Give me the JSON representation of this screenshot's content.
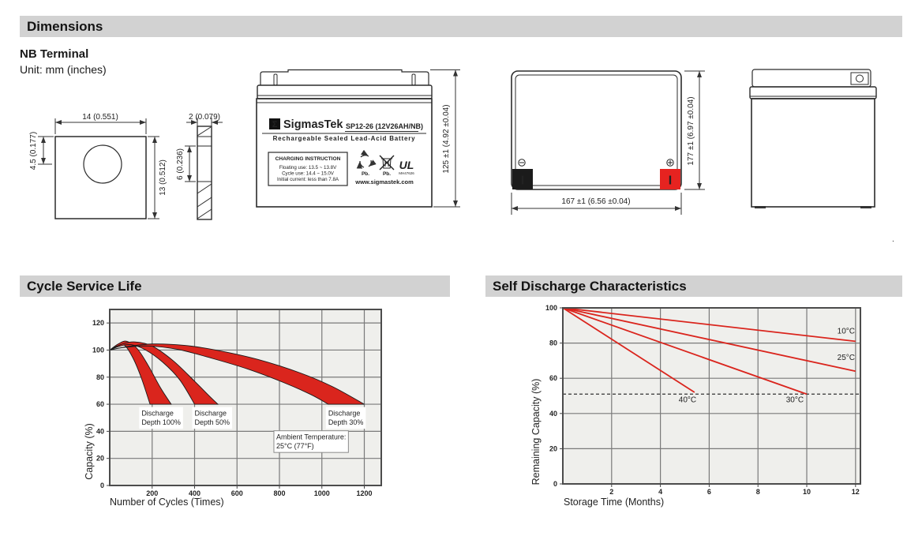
{
  "header": {
    "title": "Dimensions"
  },
  "colors": {
    "header_bar": "#d2d2d2",
    "accent_red": "#da251d",
    "chart_bg": "#efefec",
    "grid": "#7a7a7a",
    "border": "#4c4c4c",
    "terminal_black": "#1b1b1b",
    "terminal_red": "#e62320"
  },
  "dimensions": {
    "terminal_type": "NB Terminal",
    "unit_note": "Unit: mm (inches)",
    "terminal_front": {
      "width": "14 (0.551)",
      "height": "13 (0.512)",
      "hole_center_offset": "4.5 (0.177)"
    },
    "terminal_side": {
      "thickness": "2 (0.079)",
      "hole_height": "6 (0.236)"
    },
    "front_view": {
      "logo_glyph": "Σ",
      "brand": "SigmasTek",
      "model": "SP12-26 (12V26AH/NB)",
      "battery_type": "Rechargeable Sealed Lead-Acid Battery",
      "charging_title": "CHARGING INSTRUCTION",
      "charging_line1": "Floating use: 13.5 ~ 13.8V",
      "charging_line2": "Cycle use: 14.4 ~ 15.0V",
      "charging_line3": "Initial current: less than 7.8A",
      "pb_recycle": "Pb.",
      "pb_bin": "Pb.",
      "ul_mark": "UL",
      "ul_file": "MH47626",
      "website": "www.sigmastek.com",
      "height": "125 ±1 (4.92 ±0.04)"
    },
    "top_view": {
      "width": "167 ±1 (6.56 ±0.04)",
      "depth": "177 ±1 (6.97 ±0.04)",
      "terminal_slot": "I"
    },
    "trailing_dot": "."
  },
  "sections": {
    "cycle_title": "Cycle Service Life",
    "self_title": "Self Discharge Characteristics"
  },
  "chart_data": [
    {
      "id": "cycle-service-life",
      "type": "area",
      "title": "Cycle Service Life",
      "xlabel": "Number of Cycles (Times)",
      "ylabel": "Capacity (%)",
      "xlim": [
        0,
        1280
      ],
      "ylim": [
        0,
        130
      ],
      "xticks": [
        200,
        400,
        600,
        800,
        1000,
        1200
      ],
      "yticks": [
        0,
        20,
        40,
        60,
        80,
        100,
        120
      ],
      "grid": true,
      "legend_position": "none",
      "series_color": "#da251d",
      "bands": [
        {
          "name": "Discharge Depth 100%",
          "upper": [
            [
              0,
              100
            ],
            [
              40,
              104.5
            ],
            [
              80,
              106.5
            ],
            [
              130,
              101
            ],
            [
              180,
              89
            ],
            [
              240,
              72
            ],
            [
              290,
              60
            ]
          ],
          "lower": [
            [
              0,
              100
            ],
            [
              35,
              103
            ],
            [
              70,
              103.5
            ],
            [
              110,
              94
            ],
            [
              150,
              79
            ],
            [
              190,
              60
            ]
          ]
        },
        {
          "name": "Discharge Depth 50%",
          "upper": [
            [
              0,
              100
            ],
            [
              60,
              104.5
            ],
            [
              120,
              106
            ],
            [
              200,
              103
            ],
            [
              300,
              92
            ],
            [
              400,
              77
            ],
            [
              470,
              66
            ],
            [
              510,
              60
            ]
          ],
          "lower": [
            [
              0,
              100
            ],
            [
              50,
              103
            ],
            [
              100,
              104
            ],
            [
              170,
              100
            ],
            [
              250,
              91
            ],
            [
              330,
              78
            ],
            [
              400,
              60
            ]
          ]
        },
        {
          "name": "Discharge Depth 30%",
          "upper": [
            [
              0,
              100
            ],
            [
              80,
              102.5
            ],
            [
              200,
              104.5
            ],
            [
              350,
              103.5
            ],
            [
              500,
              100
            ],
            [
              700,
              93
            ],
            [
              900,
              83
            ],
            [
              1050,
              73
            ],
            [
              1200,
              60
            ]
          ],
          "lower": [
            [
              0,
              100
            ],
            [
              70,
              102
            ],
            [
              180,
              103
            ],
            [
              320,
              100.5
            ],
            [
              480,
              94
            ],
            [
              650,
              86
            ],
            [
              820,
              76
            ],
            [
              950,
              67
            ],
            [
              1030,
              60
            ]
          ]
        }
      ],
      "annotations": [
        {
          "lines": [
            "Discharge",
            "Depth 100%"
          ],
          "x": 150,
          "y": 58.5,
          "box": false
        },
        {
          "lines": [
            "Discharge",
            "Depth 50%"
          ],
          "x": 400,
          "y": 58.5,
          "box": false
        },
        {
          "lines": [
            "Discharge",
            "Depth 30%"
          ],
          "x": 1030,
          "y": 58.5,
          "box": false
        },
        {
          "lines": [
            "Ambient Temperature:",
            "25°C (77°F)"
          ],
          "x": 785,
          "y": 41,
          "box": true
        }
      ]
    },
    {
      "id": "self-discharge",
      "type": "line",
      "title": "Self Discharge Characteristics",
      "xlabel": "Storage Time (Months)",
      "ylabel": "Remaining Capacity (%)",
      "xlim": [
        0,
        12.2
      ],
      "ylim": [
        0,
        100
      ],
      "xticks": [
        2,
        4,
        6,
        8,
        10,
        12
      ],
      "yticks": [
        0,
        20,
        40,
        60,
        80,
        100
      ],
      "grid": true,
      "legend_position": "inline",
      "series_color": "#da251d",
      "dashed_line_y": 51,
      "series": [
        {
          "name": "10°C",
          "points": [
            [
              0,
              100
            ],
            [
              12,
              81
            ]
          ],
          "label_at": [
            11.25,
            85.5
          ]
        },
        {
          "name": "25°C",
          "points": [
            [
              0,
              100
            ],
            [
              12,
              64
            ]
          ],
          "label_at": [
            11.25,
            70.5
          ]
        },
        {
          "name": "30°C",
          "points": [
            [
              0,
              100
            ],
            [
              10,
              51
            ]
          ],
          "label_at": [
            9.15,
            46.5
          ]
        },
        {
          "name": "40°C",
          "points": [
            [
              0,
              100
            ],
            [
              5.4,
              52
            ]
          ],
          "label_at": [
            4.75,
            46.5
          ]
        }
      ]
    }
  ]
}
